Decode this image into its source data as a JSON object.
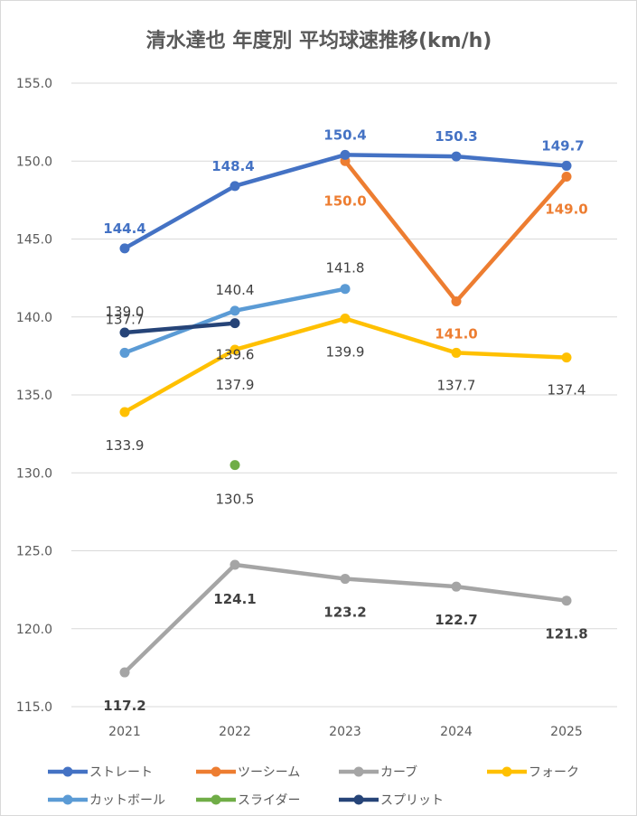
{
  "chart_data": {
    "type": "line",
    "title": "清水達也 年度別 平均球速推移(km/h)",
    "categories": [
      "2021",
      "2022",
      "2023",
      "2024",
      "2025"
    ],
    "ylim": [
      115.0,
      155.0
    ],
    "yticks": [
      "115.0",
      "120.0",
      "125.0",
      "130.0",
      "135.0",
      "140.0",
      "145.0",
      "150.0",
      "155.0"
    ],
    "grid": true,
    "legend_position": "bottom",
    "series": [
      {
        "name": "ストレート",
        "color": "#4472c4",
        "values": [
          144.4,
          148.4,
          150.4,
          150.3,
          149.7
        ],
        "labels": [
          "144.4",
          "148.4",
          "150.4",
          "150.3",
          "149.7"
        ],
        "label_color": "#4472c4",
        "label_bold": true
      },
      {
        "name": "ツーシーム",
        "color": "#ed7d31",
        "values": [
          null,
          null,
          150.0,
          141.0,
          149.0
        ],
        "labels": [
          null,
          null,
          "150.0",
          "141.0",
          "149.0"
        ],
        "label_color": "#ed7d31",
        "label_bold": true
      },
      {
        "name": "カーブ",
        "color": "#a5a5a5",
        "values": [
          117.2,
          124.1,
          123.2,
          122.7,
          121.8
        ],
        "labels": [
          "117.2",
          "124.1",
          "123.2",
          "122.7",
          "121.8"
        ],
        "label_color": "#404040",
        "label_bold": true
      },
      {
        "name": "フォーク",
        "color": "#ffc000",
        "values": [
          133.9,
          137.9,
          139.9,
          137.7,
          137.4
        ],
        "labels": [
          "133.9",
          "137.9",
          "139.9",
          "137.7",
          "137.4"
        ],
        "label_color": "#404040",
        "label_bold": false
      },
      {
        "name": "カットボール",
        "color": "#5b9bd5",
        "values": [
          137.7,
          140.4,
          141.8,
          null,
          null
        ],
        "labels": [
          "137.7",
          "140.4",
          "141.8",
          null,
          null
        ],
        "label_color": "#404040",
        "label_bold": false
      },
      {
        "name": "スライダー",
        "color": "#70ad47",
        "values": [
          null,
          130.5,
          null,
          null,
          null
        ],
        "labels": [
          null,
          "130.5",
          null,
          null,
          null
        ],
        "label_color": "#404040",
        "label_bold": false
      },
      {
        "name": "スプリット",
        "color": "#264478",
        "values": [
          139.0,
          139.6,
          null,
          null,
          null
        ],
        "labels": [
          "139.0",
          "139.6",
          null,
          null,
          null
        ],
        "label_color": "#404040",
        "label_bold": false
      }
    ]
  }
}
